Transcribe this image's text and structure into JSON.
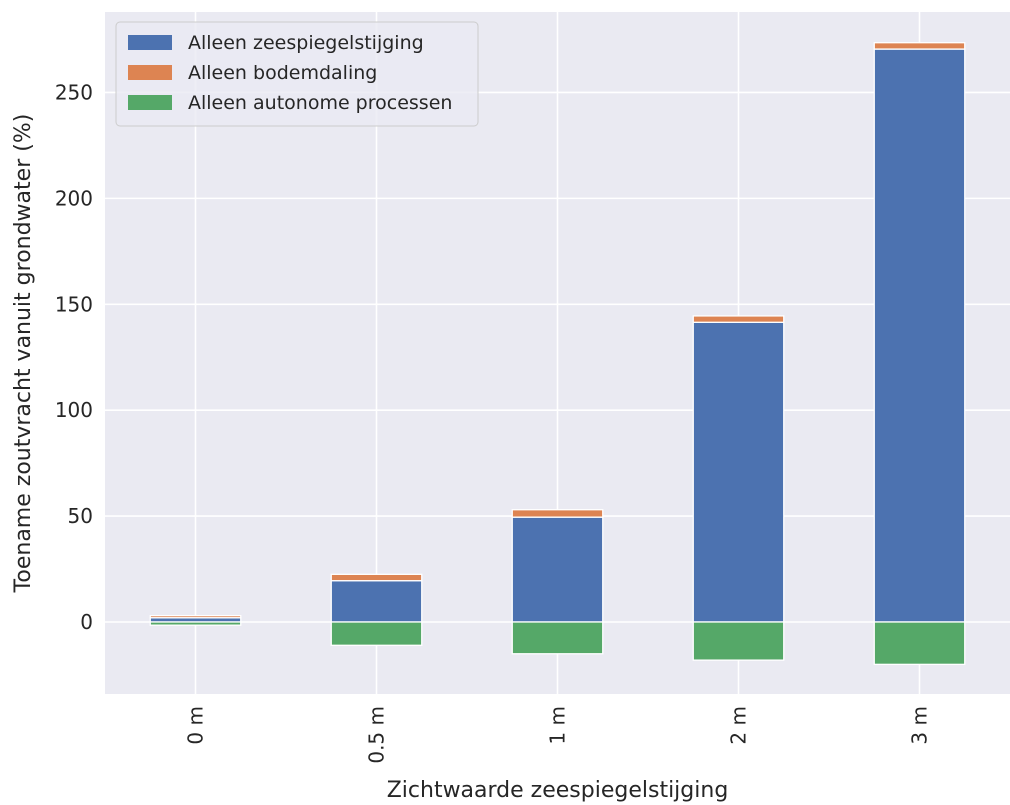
{
  "chart_data": {
    "type": "bar",
    "stacked": true,
    "categories": [
      "0 m",
      "0.5 m",
      "1 m",
      "2 m",
      "3 m"
    ],
    "series": [
      {
        "name": "Alleen zeespiegelstijging",
        "color": "#4c72b0",
        "values": [
          2,
          19.5,
          49.5,
          141.5,
          270.5
        ]
      },
      {
        "name": "Alleen bodemdaling",
        "color": "#dd8452",
        "values": [
          1,
          3,
          3.5,
          3,
          3
        ]
      },
      {
        "name": "Alleen autonome processen",
        "color": "#55a868",
        "values": [
          -1.5,
          -11,
          -15,
          -18,
          -20
        ]
      }
    ],
    "xlabel": "Zichtwaarde zeespiegelstijging",
    "ylabel": "Toename zoutvracht vanuit grondwater (%)",
    "yticks": [
      0,
      50,
      100,
      150,
      200,
      250
    ],
    "ylim": [
      -34,
      288
    ],
    "grid": true,
    "legend_position": "top-left",
    "background_color": "#eaeaf2",
    "grid_color": "#ffffff"
  }
}
